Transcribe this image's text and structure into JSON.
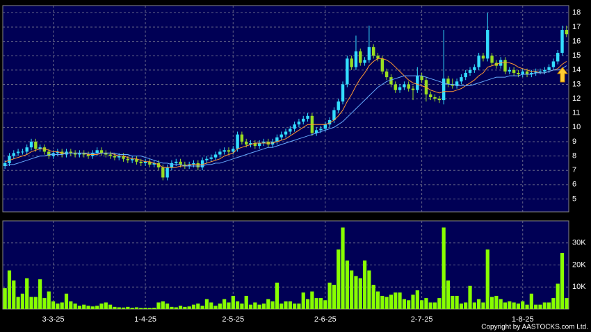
{
  "chart_data": [
    {
      "type": "candlestick",
      "up_color": "#33ddff",
      "down_color": "#99dd22",
      "ylim": [
        4.1,
        18.5
      ],
      "yticks": [
        5,
        6,
        7,
        8,
        9,
        10,
        11,
        12,
        13,
        14,
        15,
        16,
        17,
        18
      ],
      "grid": true,
      "open": [
        7.3,
        7.5,
        8.0,
        8.2,
        8.3,
        8.3,
        8.6,
        9.0,
        8.5,
        8.6,
        8.3,
        8.0,
        8.2,
        8.3,
        8.1,
        8.3,
        8.2,
        8.1,
        8.2,
        8.1,
        8.0,
        8.2,
        8.4,
        8.2,
        8.1,
        8.0,
        7.9,
        8.0,
        7.8,
        7.7,
        7.8,
        7.6,
        7.5,
        7.6,
        7.4,
        7.5,
        7.2,
        6.5,
        7.2,
        7.5,
        7.6,
        7.4,
        7.3,
        7.4,
        7.5,
        7.2,
        7.7,
        7.8,
        7.9,
        8.1,
        8.3,
        8.4,
        8.3,
        8.5,
        9.5,
        9.0,
        8.8,
        8.9,
        8.7,
        8.9,
        9.0,
        8.8,
        9.0,
        9.3,
        9.5,
        9.7,
        9.9,
        10.2,
        10.4,
        10.6,
        10.8,
        9.6,
        9.8,
        9.9,
        10.2,
        10.5,
        11.2,
        11.8,
        13.0,
        14.8,
        14.2,
        15.3,
        14.5,
        14.7,
        15.6,
        15.0,
        14.8,
        13.9,
        13.5,
        13.0,
        12.6,
        12.8,
        13.0,
        12.7,
        12.6,
        13.6,
        13.3,
        12.3,
        12.1,
        12.0,
        11.9,
        13.4,
        13.0,
        12.9,
        13.2,
        13.5,
        13.8,
        14.0,
        14.2,
        15.0,
        14.8,
        15.0,
        14.5,
        14.3,
        14.7,
        13.9,
        14.0,
        13.8,
        13.7,
        13.9,
        13.7,
        13.8,
        13.9,
        13.9,
        14.0,
        14.2,
        14.6,
        15.2,
        16.8
      ],
      "high": [
        7.7,
        8.2,
        8.4,
        8.5,
        8.5,
        8.8,
        9.2,
        9.2,
        8.8,
        8.8,
        8.5,
        8.4,
        8.5,
        8.5,
        8.5,
        8.5,
        8.4,
        8.4,
        8.4,
        8.3,
        8.4,
        8.6,
        8.6,
        8.4,
        8.3,
        8.2,
        8.2,
        8.2,
        8.0,
        8.0,
        8.0,
        7.8,
        7.8,
        7.8,
        7.7,
        7.7,
        7.4,
        7.4,
        7.7,
        7.8,
        7.8,
        7.6,
        7.6,
        7.7,
        7.7,
        7.9,
        8.0,
        8.1,
        8.3,
        8.5,
        8.6,
        8.6,
        8.7,
        9.7,
        9.7,
        9.2,
        9.1,
        9.1,
        9.1,
        9.2,
        9.2,
        9.2,
        9.5,
        9.7,
        9.9,
        10.1,
        10.4,
        10.6,
        10.8,
        11.0,
        11.0,
        10.0,
        10.1,
        10.4,
        10.7,
        11.4,
        12.0,
        13.2,
        15.0,
        15.0,
        16.4,
        15.5,
        14.9,
        17.1,
        15.8,
        15.2,
        15.0,
        14.1,
        13.7,
        13.2,
        13.0,
        13.2,
        13.2,
        12.9,
        14.2,
        13.8,
        13.5,
        12.5,
        12.3,
        12.2,
        16.8,
        13.6,
        13.4,
        13.4,
        13.7,
        14.0,
        14.2,
        14.4,
        15.2,
        15.2,
        18.0,
        15.2,
        14.7,
        14.9,
        14.9,
        14.2,
        14.2,
        14.0,
        14.1,
        14.1,
        14.0,
        14.1,
        14.1,
        14.2,
        14.4,
        14.8,
        15.4,
        17.1,
        17.1
      ],
      "low": [
        7.1,
        7.3,
        7.8,
        8.0,
        8.1,
        8.1,
        8.4,
        8.3,
        8.3,
        8.1,
        7.8,
        7.8,
        8.0,
        7.9,
        7.9,
        8.0,
        7.9,
        7.9,
        7.9,
        7.8,
        7.8,
        8.0,
        8.0,
        7.9,
        7.8,
        7.7,
        7.7,
        7.6,
        7.5,
        7.5,
        7.4,
        7.3,
        7.3,
        7.2,
        7.2,
        7.0,
        6.3,
        6.3,
        7.0,
        7.3,
        7.2,
        7.1,
        7.1,
        7.2,
        7.0,
        7.0,
        7.5,
        7.6,
        7.7,
        7.9,
        8.1,
        8.1,
        8.1,
        8.3,
        8.8,
        8.6,
        8.6,
        8.5,
        8.5,
        8.7,
        8.6,
        8.6,
        8.8,
        9.1,
        9.3,
        9.5,
        9.7,
        10.0,
        10.2,
        10.4,
        9.4,
        9.4,
        9.6,
        9.7,
        10.0,
        10.3,
        11.0,
        11.6,
        12.8,
        14.0,
        14.0,
        14.3,
        14.3,
        14.5,
        14.8,
        14.6,
        13.7,
        13.3,
        12.8,
        12.4,
        12.4,
        12.6,
        12.5,
        11.9,
        12.4,
        13.1,
        11.8,
        11.9,
        11.8,
        11.7,
        11.6,
        12.8,
        12.7,
        12.7,
        13.0,
        13.3,
        13.6,
        13.8,
        14.0,
        14.6,
        14.6,
        14.3,
        14.1,
        14.1,
        13.7,
        13.7,
        13.6,
        13.5,
        13.5,
        13.5,
        13.5,
        13.6,
        13.7,
        13.7,
        13.8,
        14.0,
        14.4,
        15.0,
        16.3
      ],
      "close": [
        7.5,
        8.0,
        8.2,
        8.3,
        8.3,
        8.6,
        9.0,
        8.5,
        8.6,
        8.3,
        8.0,
        8.2,
        8.3,
        8.1,
        8.3,
        8.2,
        8.1,
        8.2,
        8.1,
        8.0,
        8.2,
        8.4,
        8.2,
        8.1,
        8.0,
        7.9,
        8.0,
        7.8,
        7.7,
        7.8,
        7.6,
        7.5,
        7.6,
        7.4,
        7.5,
        7.2,
        6.5,
        7.2,
        7.5,
        7.6,
        7.4,
        7.3,
        7.4,
        7.5,
        7.2,
        7.7,
        7.8,
        7.9,
        8.1,
        8.3,
        8.4,
        8.3,
        8.5,
        9.5,
        9.0,
        8.8,
        8.9,
        8.7,
        8.9,
        9.0,
        8.8,
        9.0,
        9.3,
        9.5,
        9.7,
        9.9,
        10.2,
        10.4,
        10.6,
        10.8,
        9.6,
        9.8,
        9.9,
        10.2,
        10.5,
        11.2,
        11.8,
        13.0,
        14.8,
        14.2,
        15.3,
        14.5,
        14.7,
        15.6,
        15.0,
        14.8,
        13.9,
        13.5,
        13.0,
        12.6,
        12.8,
        13.0,
        12.7,
        12.6,
        13.6,
        13.3,
        12.3,
        12.1,
        12.0,
        11.9,
        13.4,
        13.0,
        12.9,
        13.2,
        13.5,
        13.8,
        14.0,
        14.2,
        15.0,
        14.8,
        16.8,
        14.5,
        14.3,
        14.7,
        13.9,
        14.0,
        13.8,
        13.7,
        13.9,
        13.7,
        13.8,
        13.9,
        13.9,
        14.0,
        14.2,
        14.6,
        15.2,
        16.8,
        16.5
      ],
      "series": [
        {
          "color": "#ff9933",
          "values": [
            7.6,
            7.7,
            7.8,
            7.9,
            8.0,
            8.1,
            8.3,
            8.4,
            8.5,
            8.5,
            8.4,
            8.3,
            8.3,
            8.2,
            8.2,
            8.2,
            8.2,
            8.2,
            8.2,
            8.1,
            8.1,
            8.1,
            8.2,
            8.2,
            8.2,
            8.1,
            8.0,
            8.0,
            7.9,
            7.8,
            7.8,
            7.7,
            7.6,
            7.6,
            7.5,
            7.4,
            7.2,
            7.2,
            7.2,
            7.2,
            7.3,
            7.3,
            7.4,
            7.4,
            7.4,
            7.4,
            7.5,
            7.6,
            7.7,
            7.8,
            8.0,
            8.1,
            8.2,
            8.5,
            8.6,
            8.7,
            8.8,
            8.9,
            8.9,
            8.9,
            8.9,
            8.9,
            9.0,
            9.1,
            9.2,
            9.4,
            9.6,
            9.8,
            10.0,
            10.2,
            10.2,
            10.2,
            10.2,
            10.2,
            10.3,
            10.5,
            10.8,
            11.2,
            11.8,
            12.3,
            12.9,
            13.4,
            13.8,
            14.3,
            14.6,
            14.8,
            14.8,
            14.7,
            14.5,
            14.2,
            13.9,
            13.6,
            13.3,
            13.1,
            13.0,
            12.9,
            12.8,
            12.6,
            12.5,
            12.4,
            12.5,
            12.5,
            12.5,
            12.6,
            12.7,
            12.9,
            13.1,
            13.3,
            13.6,
            13.8,
            14.2,
            14.3,
            14.4,
            14.5,
            14.5,
            14.5,
            14.4,
            14.2,
            14.1,
            14.0,
            13.9,
            13.9,
            13.8,
            13.8,
            13.9,
            14.0,
            14.1,
            14.4,
            14.6
          ]
        },
        {
          "color": "#66aaff",
          "values": [
            7.3,
            7.4,
            7.4,
            7.5,
            7.6,
            7.7,
            7.8,
            7.9,
            8.0,
            8.0,
            8.1,
            8.1,
            8.1,
            8.1,
            8.2,
            8.2,
            8.2,
            8.2,
            8.2,
            8.2,
            8.2,
            8.2,
            8.2,
            8.2,
            8.2,
            8.2,
            8.1,
            8.1,
            8.1,
            8.0,
            8.0,
            8.0,
            7.9,
            7.8,
            7.7,
            7.6,
            7.5,
            7.5,
            7.4,
            7.4,
            7.4,
            7.3,
            7.3,
            7.3,
            7.3,
            7.3,
            7.4,
            7.4,
            7.5,
            7.5,
            7.6,
            7.7,
            7.8,
            7.9,
            8.0,
            8.1,
            8.2,
            8.3,
            8.4,
            8.5,
            8.6,
            8.6,
            8.7,
            8.8,
            8.9,
            9.0,
            9.1,
            9.2,
            9.3,
            9.4,
            9.5,
            9.6,
            9.7,
            9.8,
            9.9,
            10.0,
            10.2,
            10.4,
            10.7,
            11.0,
            11.3,
            11.6,
            11.9,
            12.2,
            12.5,
            12.8,
            13.0,
            13.2,
            13.3,
            13.4,
            13.5,
            13.6,
            13.6,
            13.6,
            13.6,
            13.6,
            13.5,
            13.4,
            13.3,
            13.2,
            13.1,
            13.0,
            13.0,
            12.9,
            12.9,
            12.9,
            12.9,
            13.0,
            13.1,
            13.2,
            13.3,
            13.4,
            13.5,
            13.5,
            13.5,
            13.6,
            13.6,
            13.6,
            13.7,
            13.7,
            13.7,
            13.8,
            13.8,
            13.8,
            13.9,
            14.0,
            14.0,
            14.1,
            14.3
          ]
        }
      ]
    },
    {
      "type": "bar",
      "color": "#88ff00",
      "ylim": [
        0,
        40000
      ],
      "yticks": [
        {
          "value": 10000,
          "label": "10K"
        },
        {
          "value": 20000,
          "label": "20K"
        },
        {
          "value": 30000,
          "label": "30K"
        }
      ],
      "grid": true,
      "categories": [
        null,
        null,
        null,
        null,
        null,
        null,
        null,
        null,
        null,
        null,
        null,
        "3-3-25",
        null,
        null,
        null,
        null,
        null,
        null,
        null,
        null,
        null,
        null,
        null,
        null,
        null,
        null,
        null,
        null,
        null,
        null,
        null,
        null,
        "1-4-25",
        null,
        null,
        null,
        null,
        null,
        null,
        null,
        null,
        null,
        null,
        null,
        null,
        null,
        null,
        null,
        null,
        null,
        null,
        null,
        "2-5-25",
        null,
        null,
        null,
        null,
        null,
        null,
        null,
        null,
        null,
        null,
        null,
        null,
        null,
        null,
        null,
        null,
        null,
        null,
        null,
        null,
        "2-6-25",
        null,
        null,
        null,
        null,
        null,
        null,
        null,
        null,
        null,
        null,
        null,
        null,
        null,
        null,
        null,
        null,
        null,
        null,
        null,
        null,
        null,
        "2-7-25",
        null,
        null,
        null,
        null,
        null,
        null,
        null,
        null,
        null,
        null,
        null,
        null,
        null,
        null,
        null,
        null,
        null,
        null,
        null,
        null,
        null,
        null,
        "1-8-25",
        null,
        null,
        null,
        null,
        null,
        null,
        null,
        null,
        null,
        null
      ],
      "values": [
        9500,
        17500,
        13000,
        5500,
        7000,
        14000,
        5500,
        5500,
        13500,
        5000,
        8000,
        3500,
        2500,
        3000,
        7000,
        3500,
        2500,
        1500,
        2000,
        1500,
        1200,
        1500,
        2500,
        3000,
        2000,
        1000,
        800,
        700,
        1000,
        600,
        800,
        500,
        600,
        500,
        600,
        3000,
        3500,
        2500,
        1000,
        800,
        1500,
        1000,
        1200,
        2000,
        2500,
        1500,
        4500,
        3000,
        1500,
        2500,
        4500,
        3000,
        6000,
        3500,
        2500,
        6000,
        2000,
        3000,
        2000,
        2500,
        4500,
        3500,
        12000,
        2500,
        3500,
        3500,
        2500,
        2500,
        7500,
        4500,
        8000,
        5000,
        5000,
        4000,
        12000,
        11000,
        27000,
        37000,
        22000,
        17500,
        15000,
        14000,
        22000,
        17500,
        11000,
        8000,
        6000,
        5500,
        6500,
        7500,
        7500,
        4500,
        4000,
        6500,
        8500,
        4000,
        5000,
        3000,
        3000,
        5000,
        37000,
        13000,
        6000,
        6000,
        2500,
        3000,
        10500,
        3000,
        4500,
        3000,
        27000,
        5500,
        6000,
        4500,
        3000,
        3500,
        3000,
        2500,
        3500,
        2000,
        7000,
        2000,
        2000,
        3000,
        3000,
        5000,
        11500,
        25500,
        5000
      ]
    }
  ],
  "footer": "Copyright by AASTOCKS.com Ltd."
}
